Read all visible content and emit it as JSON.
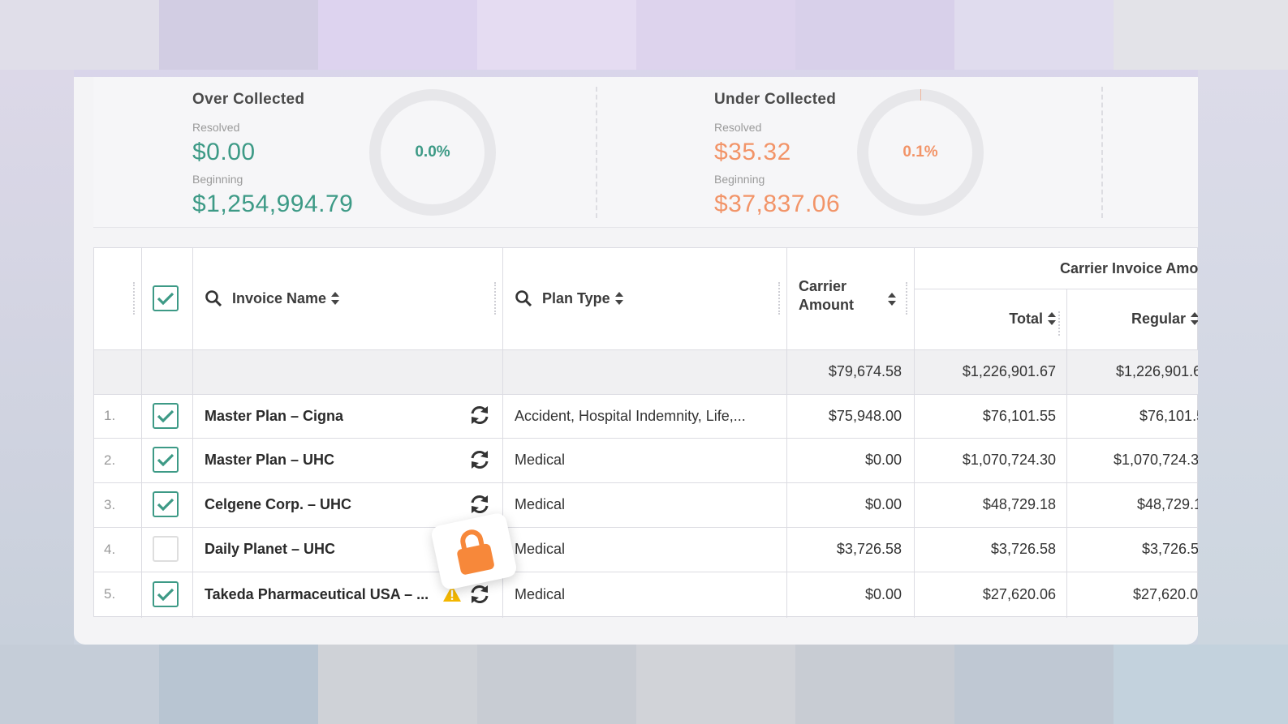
{
  "summary": {
    "over": {
      "title": "Over Collected",
      "resolved_label": "Resolved",
      "resolved_value": "$0.00",
      "beginning_label": "Beginning",
      "beginning_value": "$1,254,994.79",
      "percent": "0.0%",
      "percent_value": 0.0,
      "color": "#3d9a86"
    },
    "under": {
      "title": "Under Collected",
      "resolved_label": "Resolved",
      "resolved_value": "$35.32",
      "beginning_label": "Beginning",
      "beginning_value": "$37,837.06",
      "percent": "0.1%",
      "percent_value": 0.1,
      "color": "#f29468"
    }
  },
  "table": {
    "headers": {
      "invoice_name": "Invoice Name",
      "plan_type": "Plan Type",
      "carrier_amount_line1": "Carrier",
      "carrier_amount_line2": "Amount",
      "carrier_invoice_group": "Carrier Invoice Amo",
      "total": "Total",
      "regular": "Regular"
    },
    "totals": {
      "carrier_amount": "$79,674.58",
      "total": "$1,226,901.67",
      "regular": "$1,226,901.6"
    },
    "rows": [
      {
        "num": "1.",
        "checked": true,
        "name": "Master Plan – Cigna",
        "plan": "Accident, Hospital Indemnity, Life,...",
        "carrier": "$75,948.00",
        "total": "$76,101.55",
        "regular": "$76,101.5",
        "icon": "refresh-icon",
        "warning": false
      },
      {
        "num": "2.",
        "checked": true,
        "name": "Master Plan – UHC",
        "plan": "Medical",
        "carrier": "$0.00",
        "total": "$1,070,724.30",
        "regular": "$1,070,724.3",
        "icon": "refresh-icon",
        "warning": false
      },
      {
        "num": "3.",
        "checked": true,
        "name": "Celgene Corp. – UHC",
        "plan": "Medical",
        "carrier": "$0.00",
        "total": "$48,729.18",
        "regular": "$48,729.1",
        "icon": "refresh-icon",
        "warning": false
      },
      {
        "num": "4.",
        "checked": false,
        "name": "Daily Planet – UHC",
        "plan": "Medical",
        "carrier": "$3,726.58",
        "total": "$3,726.58",
        "regular": "$3,726.5",
        "icon": "lock-icon",
        "warning": false
      },
      {
        "num": "5.",
        "checked": true,
        "name": "Takeda Pharmaceutical USA – ...",
        "plan": "Medical",
        "carrier": "$0.00",
        "total": "$27,620.06",
        "regular": "$27,620.0",
        "icon": "refresh-icon",
        "warning": true
      }
    ]
  },
  "colors": {
    "accent_green": "#3d9a86",
    "accent_orange": "#f29468",
    "lock_orange": "#f7883a",
    "warning_yellow": "#f5b800"
  }
}
